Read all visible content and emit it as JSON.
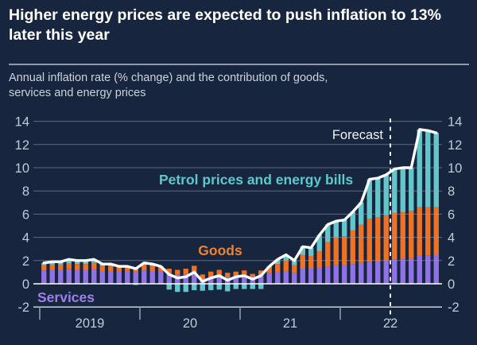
{
  "header": {
    "title": "Higher energy prices are expected to push inflation to 13%\nlater this year",
    "subtitle": "Annual inflation rate (% change) and the contribution of goods,\nservices and energy prices"
  },
  "colors": {
    "background": "#17263E",
    "title_text": "#FFFFFF",
    "subtitle_text": "#CBD2DC",
    "axis_text": "#C2CAD5",
    "grid_overlay": "rgba(151,162,180,0.55)",
    "zero_line": "#FFFFFF",
    "baseline": "#C9D1DD",
    "divider": "#8F99A9",
    "forecast_line": "#EDF1F6",
    "total_line": "#FFFFFF"
  },
  "chart_data": {
    "type": "bar",
    "stacked": true,
    "title": "Annual inflation rate (% change) and the contribution of goods, services and energy prices",
    "xlabel": "",
    "ylabel": "",
    "ylim": [
      -2,
      14
    ],
    "y_ticks": [
      14,
      12,
      10,
      8,
      6,
      4,
      2,
      0,
      -2
    ],
    "x_tick_labels": [
      "2019",
      "20",
      "21",
      "22"
    ],
    "x_months": [
      "2019-01",
      "2019-02",
      "2019-03",
      "2019-04",
      "2019-05",
      "2019-06",
      "2019-07",
      "2019-08",
      "2019-09",
      "2019-10",
      "2019-11",
      "2019-12",
      "2020-01",
      "2020-02",
      "2020-03",
      "2020-04",
      "2020-05",
      "2020-06",
      "2020-07",
      "2020-08",
      "2020-09",
      "2020-10",
      "2020-11",
      "2020-12",
      "2021-01",
      "2021-02",
      "2021-03",
      "2021-04",
      "2021-05",
      "2021-06",
      "2021-07",
      "2021-08",
      "2021-09",
      "2021-10",
      "2021-11",
      "2021-12",
      "2022-01",
      "2022-02",
      "2022-03",
      "2022-04",
      "2022-05",
      "2022-06",
      "2022-07",
      "2022-08",
      "2022-09",
      "2022-10",
      "2022-11",
      "2022-12"
    ],
    "series": [
      {
        "name": "Services",
        "color": "#8F72E5",
        "values": [
          1.15,
          1.2,
          1.2,
          1.25,
          1.2,
          1.2,
          1.25,
          1.1,
          1.1,
          1.1,
          1.1,
          1.0,
          1.15,
          1.1,
          1.05,
          0.9,
          0.8,
          0.85,
          1.0,
          0.35,
          0.6,
          0.7,
          0.6,
          0.7,
          0.75,
          0.6,
          0.7,
          0.9,
          1.0,
          1.1,
          0.95,
          1.3,
          1.3,
          1.4,
          1.5,
          1.6,
          1.6,
          1.7,
          1.8,
          1.9,
          1.95,
          2.0,
          2.1,
          2.15,
          2.2,
          2.4,
          2.45,
          2.5
        ]
      },
      {
        "name": "Goods",
        "color": "#EE7124",
        "values": [
          0.45,
          0.45,
          0.45,
          0.5,
          0.5,
          0.5,
          0.55,
          0.45,
          0.45,
          0.45,
          0.45,
          0.4,
          0.5,
          0.45,
          0.45,
          0.4,
          0.4,
          0.45,
          0.55,
          0.45,
          0.45,
          0.5,
          0.35,
          0.35,
          0.4,
          0.25,
          0.45,
          0.5,
          0.7,
          0.9,
          0.65,
          1.2,
          1.1,
          1.4,
          2.1,
          2.4,
          2.5,
          2.9,
          3.3,
          3.7,
          3.8,
          3.9,
          4.0,
          4.05,
          4.1,
          4.2,
          4.15,
          4.1
        ]
      },
      {
        "name": "Petrol prices and energy bills",
        "color": "#62C6CA",
        "values": [
          0.2,
          0.25,
          0.25,
          0.35,
          0.3,
          0.3,
          0.3,
          0.15,
          0.15,
          -0.05,
          -0.05,
          -0.1,
          0.15,
          0.15,
          0.0,
          -0.5,
          -0.7,
          -0.7,
          -0.55,
          -0.6,
          -0.55,
          -0.5,
          -0.65,
          -0.45,
          -0.45,
          -0.45,
          -0.45,
          0.1,
          0.4,
          0.5,
          0.4,
          0.7,
          0.7,
          1.4,
          1.5,
          1.4,
          1.4,
          1.6,
          1.9,
          3.4,
          3.35,
          3.5,
          3.8,
          3.8,
          3.7,
          6.7,
          6.6,
          6.4
        ]
      }
    ],
    "total_line": {
      "name": "Annual inflation rate",
      "color": "#FFFFFF",
      "values": [
        1.8,
        1.9,
        1.9,
        2.1,
        2.0,
        2.0,
        2.1,
        1.7,
        1.7,
        1.5,
        1.5,
        1.3,
        1.8,
        1.7,
        1.5,
        0.8,
        0.5,
        0.6,
        1.0,
        0.2,
        0.5,
        0.7,
        0.3,
        0.6,
        0.7,
        0.4,
        0.7,
        1.5,
        2.1,
        2.5,
        2.0,
        3.2,
        3.1,
        4.2,
        5.1,
        5.4,
        5.5,
        6.2,
        7.0,
        9.0,
        9.1,
        9.4,
        9.9,
        10.0,
        10.0,
        13.3,
        13.2,
        13.0
      ]
    },
    "forecast": {
      "label": "Forecast",
      "start_index": 42
    },
    "annotations": [
      {
        "id": "forecast-label",
        "text": "Forecast"
      },
      {
        "id": "energy-label",
        "text": "Petrol prices and energy bills"
      },
      {
        "id": "goods-label",
        "text": "Goods"
      },
      {
        "id": "services-label",
        "text": "Services"
      }
    ],
    "legend_position": "in-plot",
    "grid": true
  }
}
